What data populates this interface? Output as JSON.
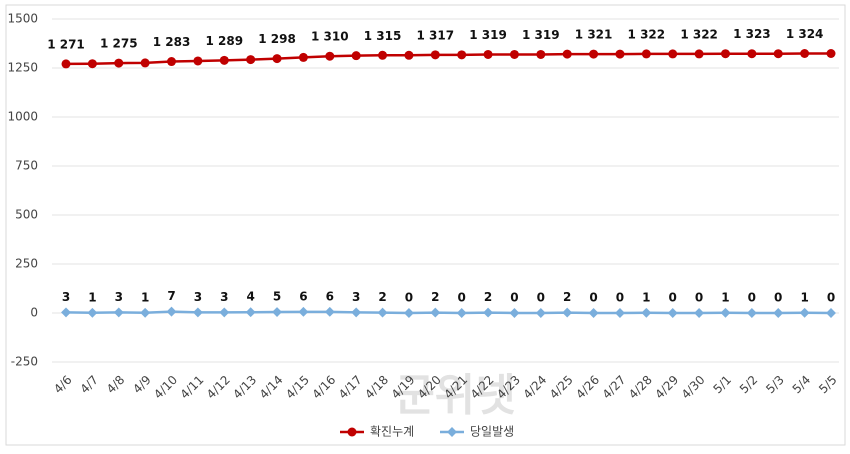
{
  "chart_data": {
    "type": "line",
    "categories": [
      "4/6",
      "4/7",
      "4/8",
      "4/9",
      "4/10",
      "4/11",
      "4/12",
      "4/13",
      "4/14",
      "4/15",
      "4/16",
      "4/17",
      "4/18",
      "4/19",
      "4/20",
      "4/21",
      "4/22",
      "4/23",
      "4/24",
      "4/25",
      "4/26",
      "4/27",
      "4/28",
      "4/29",
      "4/30",
      "5/1",
      "5/2",
      "5/3",
      "5/4",
      "5/5"
    ],
    "series": [
      {
        "name": "확진누계",
        "color": "#c00000",
        "values": [
          1271,
          1272,
          1275,
          1276,
          1283,
          1286,
          1289,
          1293,
          1298,
          1304,
          1310,
          1313,
          1315,
          1315,
          1317,
          1317,
          1319,
          1319,
          1319,
          1321,
          1321,
          1321,
          1322,
          1322,
          1322,
          1323,
          1323,
          1323,
          1324,
          1324
        ],
        "value_labels": [
          "1 271",
          null,
          "1 275",
          null,
          "1 283",
          null,
          "1 289",
          null,
          "1 298",
          null,
          "1 310",
          null,
          "1 315",
          null,
          "1 317",
          null,
          "1 319",
          null,
          "1 319",
          null,
          "1 321",
          null,
          "1 322",
          null,
          "1 322",
          null,
          "1 323",
          null,
          "1 324",
          null
        ]
      },
      {
        "name": "당일발생",
        "color": "#7aaedc",
        "values": [
          3,
          1,
          3,
          1,
          7,
          3,
          3,
          4,
          5,
          6,
          6,
          3,
          2,
          0,
          2,
          0,
          2,
          0,
          0,
          2,
          0,
          0,
          1,
          0,
          0,
          1,
          0,
          0,
          1,
          0
        ]
      }
    ],
    "ylim": [
      -250,
      1500
    ],
    "yticks": [
      -250,
      0,
      250,
      500,
      750,
      1000,
      1250,
      1500
    ],
    "grid": true,
    "legend": "bottom",
    "watermark": "군위넷"
  }
}
